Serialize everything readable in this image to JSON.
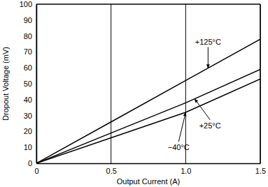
{
  "chart_data": {
    "type": "line",
    "x_label": "Output Current (A)",
    "y_label": "Dropout Voltage (mV)",
    "x": [
      0,
      0.5,
      1,
      1.5
    ],
    "series": [
      {
        "name": "+125°C",
        "color": "#000000",
        "values": [
          0,
          26,
          52,
          78
        ]
      },
      {
        "name": "+25°C",
        "color": "#000000",
        "values": [
          0,
          19,
          38,
          59
        ]
      },
      {
        "name": "−40°C",
        "color": "#000000",
        "values": [
          0,
          16,
          32,
          53
        ]
      }
    ],
    "xlim": [
      0,
      1.5
    ],
    "xticks": [
      0,
      0.5,
      {
        "value": 1,
        "label": "1.0"
      },
      1.5
    ],
    "ylim": [
      0,
      100
    ],
    "yticks": [
      0,
      10,
      20,
      30,
      40,
      50,
      60,
      70,
      80,
      90,
      100
    ],
    "grid": "x"
  }
}
